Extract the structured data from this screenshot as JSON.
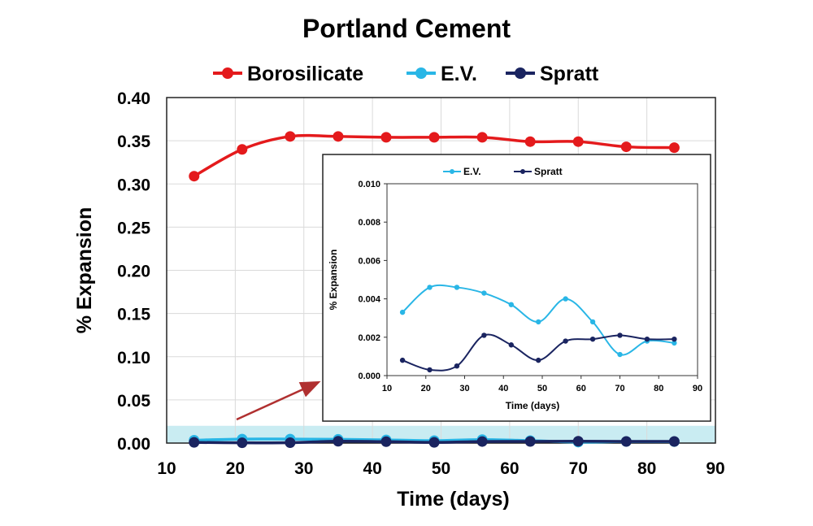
{
  "chart_data": [
    {
      "type": "line",
      "title": "Portland Cement",
      "xlabel": "Time (days)",
      "ylabel": "% Expansion",
      "xlim": [
        10,
        90
      ],
      "ylim": [
        0,
        0.4
      ],
      "xticks": [
        10,
        20,
        30,
        40,
        50,
        60,
        70,
        80,
        90
      ],
      "yticks": [
        0.0,
        0.05,
        0.1,
        0.15,
        0.2,
        0.25,
        0.3,
        0.35,
        0.4
      ],
      "grid": true,
      "legend_position": "top",
      "highlight_band": {
        "y0": 0,
        "y1": 0.02,
        "color": "#c9ecf2"
      },
      "series": [
        {
          "name": "Borosilicate",
          "color": "#e41a1c",
          "x": [
            14,
            21,
            28,
            35,
            42,
            49,
            56,
            63,
            70,
            77,
            84
          ],
          "y": [
            0.309,
            0.34,
            0.355,
            0.355,
            0.354,
            0.354,
            0.354,
            0.349,
            0.349,
            0.343,
            0.342
          ]
        },
        {
          "name": "E.V.",
          "color": "#29b6e6",
          "x": [
            14,
            21,
            28,
            35,
            42,
            49,
            56,
            63,
            70,
            77,
            84
          ],
          "y": [
            0.0033,
            0.0046,
            0.0046,
            0.0043,
            0.0037,
            0.0028,
            0.004,
            0.0028,
            0.0011,
            0.0018,
            0.0017
          ]
        },
        {
          "name": "Spratt",
          "color": "#1a2460",
          "x": [
            14,
            21,
            28,
            35,
            42,
            49,
            56,
            63,
            70,
            77,
            84
          ],
          "y": [
            0.0008,
            0.0003,
            0.0005,
            0.0021,
            0.0016,
            0.0008,
            0.0018,
            0.0019,
            0.0021,
            0.0019,
            0.0019
          ]
        }
      ]
    },
    {
      "type": "line",
      "title": "",
      "xlabel": "Time (days)",
      "ylabel": "% Expansion",
      "xlim": [
        10,
        90
      ],
      "ylim": [
        0,
        0.01
      ],
      "xticks": [
        10,
        20,
        30,
        40,
        50,
        60,
        70,
        80,
        90
      ],
      "yticks": [
        "0.000",
        "0.002",
        "0.004",
        "0.006",
        "0.008",
        "0.010"
      ],
      "grid": false,
      "legend_position": "top",
      "series": [
        {
          "name": "E.V.",
          "color": "#29b6e6",
          "x": [
            14,
            21,
            28,
            35,
            42,
            49,
            56,
            63,
            70,
            77,
            84
          ],
          "y": [
            0.0033,
            0.0046,
            0.0046,
            0.0043,
            0.0037,
            0.0028,
            0.004,
            0.0028,
            0.0011,
            0.0018,
            0.0017
          ]
        },
        {
          "name": "Spratt",
          "color": "#1a2460",
          "x": [
            14,
            21,
            28,
            35,
            42,
            49,
            56,
            63,
            70,
            77,
            84
          ],
          "y": [
            0.0008,
            0.0003,
            0.0005,
            0.0021,
            0.0016,
            0.0008,
            0.0018,
            0.0019,
            0.0021,
            0.0019,
            0.0019
          ]
        }
      ]
    }
  ]
}
